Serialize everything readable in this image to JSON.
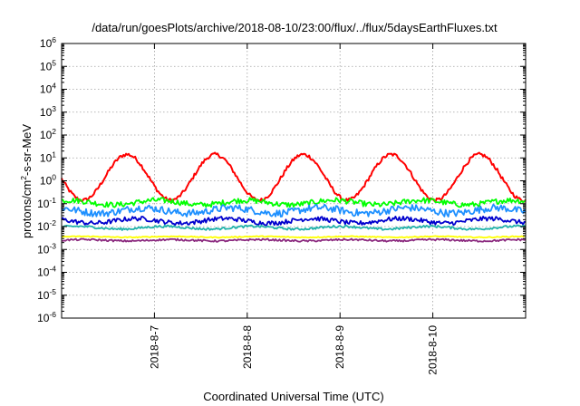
{
  "chart_data": {
    "type": "line",
    "title": "/data/run/goesPlots/archive/2018-08-10/23:00/flux/../flux/5daysEarthFluxes.txt",
    "xlabel": "Coordinated Universal Time (UTC)",
    "ylabel": {
      "base": "protons/cm",
      "sup": "2",
      "rest": "-s-sr-MeV"
    },
    "y_scale": "log",
    "ylim": [
      1e-06,
      1000000.0
    ],
    "y_ticks": [
      {
        "exp": "-6"
      },
      {
        "exp": "-5"
      },
      {
        "exp": "-4"
      },
      {
        "exp": "-3"
      },
      {
        "exp": "-2"
      },
      {
        "exp": "-1"
      },
      {
        "exp": "0"
      },
      {
        "exp": "1"
      },
      {
        "exp": "2"
      },
      {
        "exp": "3"
      },
      {
        "exp": "4"
      },
      {
        "exp": "5"
      },
      {
        "exp": "6"
      }
    ],
    "xlim": [
      "2018-08-06",
      "2018-08-11"
    ],
    "x_ticks": [
      "2018-8-7",
      "2018-8-8",
      "2018-8-9",
      "2018-8-10"
    ],
    "grid": true,
    "series": [
      {
        "color": "#ff0000",
        "log10_base": 0.15,
        "log10_amp": 1.0,
        "period_days": 0.95,
        "phase": 3.2,
        "noise": 0.08
      },
      {
        "color": "#00ff00",
        "log10_base": -0.95,
        "log10_amp": 0.1,
        "period_days": 0.95,
        "phase": 1.0,
        "noise": 0.12
      },
      {
        "color": "#1e90ff",
        "log10_base": -1.3,
        "log10_amp": 0.12,
        "period_days": 0.95,
        "phase": 2.0,
        "noise": 0.16
      },
      {
        "color": "#0000cd",
        "log10_base": -1.75,
        "log10_amp": 0.1,
        "period_days": 0.95,
        "phase": 2.5,
        "noise": 0.1
      },
      {
        "color": "#20b2aa",
        "log10_base": -2.05,
        "log10_amp": 0.06,
        "period_days": 0.95,
        "phase": 0.5,
        "noise": 0.05
      },
      {
        "color": "#ffff00",
        "log10_base": -2.45,
        "log10_amp": 0.02,
        "period_days": 0.95,
        "phase": 0.0,
        "noise": 0.02
      },
      {
        "color": "#8b2a7f",
        "log10_base": -2.6,
        "log10_amp": 0.03,
        "period_days": 0.95,
        "phase": 0.0,
        "noise": 0.04
      }
    ]
  }
}
